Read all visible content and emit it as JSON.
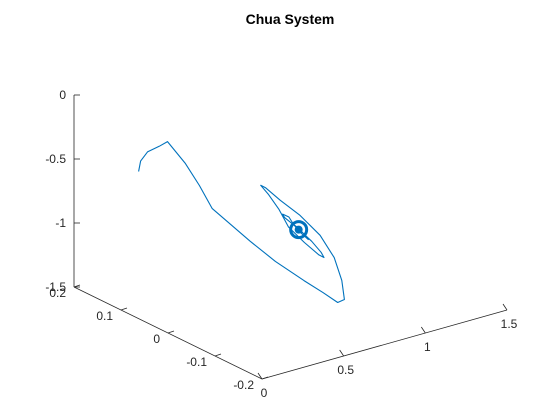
{
  "chart_data": {
    "type": "line",
    "projection": "3d",
    "title": "Chua System",
    "xlabel": "",
    "ylabel": "",
    "zlabel": "",
    "grid": false,
    "legend": "none",
    "xlim": [
      -0.2,
      0.2
    ],
    "ylim": [
      0,
      1.5
    ],
    "zlim": [
      -1.5,
      0
    ],
    "x_ticks": [
      "0.2",
      "0.1",
      "0",
      "-0.1",
      "-0.2"
    ],
    "y_ticks": [
      "0",
      "0.5",
      "1",
      "1.5"
    ],
    "z_ticks": [
      "0",
      "-0.5",
      "-1",
      "-1.5"
    ],
    "series": [
      {
        "color": "#0072BD",
        "description_points_note": "trajectory spiraling into an attractor near (x≈0, y≈0.8, z≈-1)",
        "points": [
          [
            0.08,
            0.05,
            -0.4
          ],
          [
            0.1,
            0.12,
            -0.38
          ],
          [
            0.12,
            0.22,
            -0.38
          ],
          [
            0.13,
            0.32,
            -0.39
          ],
          [
            0.14,
            0.4,
            -0.4
          ],
          [
            0.12,
            0.45,
            -0.55
          ],
          [
            0.1,
            0.48,
            -0.7
          ],
          [
            0.08,
            0.5,
            -0.85
          ],
          [
            0.02,
            0.56,
            -1.02
          ],
          [
            -0.02,
            0.6,
            -1.12
          ],
          [
            -0.06,
            0.66,
            -1.22
          ],
          [
            -0.08,
            0.72,
            -1.3
          ],
          [
            -0.09,
            0.78,
            -1.38
          ],
          [
            -0.08,
            0.85,
            -1.4
          ],
          [
            -0.05,
            0.92,
            -1.33
          ],
          [
            -0.02,
            0.96,
            -1.22
          ],
          [
            0.01,
            0.96,
            -1.1
          ],
          [
            0.04,
            0.92,
            -0.98
          ],
          [
            0.06,
            0.86,
            -0.88
          ],
          [
            0.07,
            0.8,
            -0.78
          ],
          [
            0.06,
            0.74,
            -0.72
          ],
          [
            0.03,
            0.7,
            -0.72
          ],
          [
            0.0,
            0.68,
            -0.78
          ],
          [
            -0.02,
            0.68,
            -0.88
          ],
          [
            -0.04,
            0.72,
            -0.98
          ],
          [
            -0.05,
            0.78,
            -1.08
          ],
          [
            -0.04,
            0.84,
            -1.14
          ],
          [
            -0.02,
            0.88,
            -1.15
          ],
          [
            0.0,
            0.88,
            -1.1
          ],
          [
            0.02,
            0.85,
            -1.02
          ],
          [
            0.03,
            0.8,
            -0.94
          ],
          [
            0.02,
            0.76,
            -0.88
          ],
          [
            0.0,
            0.74,
            -0.86
          ],
          [
            -0.01,
            0.74,
            -0.9
          ],
          [
            -0.02,
            0.76,
            -0.96
          ],
          [
            -0.02,
            0.8,
            -1.02
          ],
          [
            -0.01,
            0.83,
            -1.05
          ],
          [
            0.0,
            0.84,
            -1.04
          ],
          [
            0.01,
            0.83,
            -1.0
          ],
          [
            0.01,
            0.8,
            -0.96
          ],
          [
            0.0,
            0.78,
            -0.95
          ],
          [
            -0.01,
            0.79,
            -0.98
          ],
          [
            0.0,
            0.81,
            -1.0
          ],
          [
            0.0,
            0.8,
            -0.98
          ]
        ]
      }
    ]
  }
}
